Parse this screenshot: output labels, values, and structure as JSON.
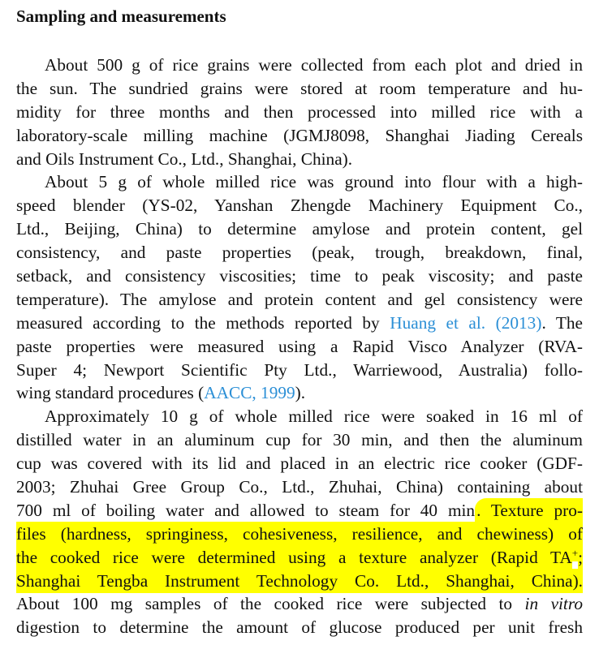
{
  "heading": "Sampling and measurements",
  "highlight_color": "#ffff00",
  "link_color": "#2b8fd6",
  "lines": [
    {
      "indent": true,
      "segs": [
        {
          "t": "About 500 g of rice grains were collected from each plot and dried in"
        }
      ]
    },
    {
      "segs": [
        {
          "t": "the sun. The sundried grains were stored at room temperature and hu-"
        }
      ]
    },
    {
      "segs": [
        {
          "t": "midity for three months and then processed into milled rice with a"
        }
      ]
    },
    {
      "segs": [
        {
          "t": "laboratory-scale milling machine (JGMJ8098, Shanghai Jiading Cereals"
        }
      ]
    },
    {
      "last": true,
      "segs": [
        {
          "t": "and Oils Instrument Co., Ltd., Shanghai, China)."
        }
      ]
    },
    {
      "indent": true,
      "segs": [
        {
          "t": "About 5 g of whole milled rice was ground into flour with a high-"
        }
      ]
    },
    {
      "segs": [
        {
          "t": "speed blender (YS-02, Yanshan Zhengde Machinery Equipment Co.,"
        }
      ]
    },
    {
      "segs": [
        {
          "t": "Ltd., Beijing, China) to determine amylose and protein content, gel"
        }
      ]
    },
    {
      "segs": [
        {
          "t": "consistency, and paste properties (peak, trough, breakdown, final,"
        }
      ]
    },
    {
      "segs": [
        {
          "t": "setback, and consistency viscosities; time to peak viscosity; and paste"
        }
      ]
    },
    {
      "segs": [
        {
          "t": "temperature). The amylose and protein content and gel consistency were"
        }
      ]
    },
    {
      "segs": [
        {
          "t": "measured according to the methods reported by "
        },
        {
          "t": "Huang et al. (2013)",
          "link": true
        },
        {
          "t": ". The"
        }
      ]
    },
    {
      "segs": [
        {
          "t": "paste properties were measured using a Rapid Visco Analyzer (RVA-"
        }
      ]
    },
    {
      "segs": [
        {
          "t": "Super 4; Newport Scientific Pty Ltd., Warriewood, Australia) follo-"
        }
      ]
    },
    {
      "last": true,
      "segs": [
        {
          "t": "wing standard procedures ("
        },
        {
          "t": "AACC, 1999",
          "link": true
        },
        {
          "t": ")."
        }
      ]
    },
    {
      "indent": true,
      "segs": [
        {
          "t": "Approximately 10 g of whole milled rice were soaked in 16 ml of"
        }
      ]
    },
    {
      "segs": [
        {
          "t": "distilled water in an aluminum cup for 30 min, and then the aluminum"
        }
      ]
    },
    {
      "segs": [
        {
          "t": "cup was covered with its lid and placed in an electric rice cooker (GDF-"
        }
      ]
    },
    {
      "segs": [
        {
          "t": "2003; Zhuhai Gree Group Co., Ltd., Zhuhai, China) containing about"
        }
      ]
    },
    {
      "segs": [
        {
          "t": "700 ml of boiling water and allowed to steam for 40 min"
        },
        {
          "t": ". Texture pro-",
          "hl": true,
          "first": true
        }
      ]
    },
    {
      "segs": [
        {
          "t": "files (hardness, springiness, cohesiveness, resilience, and chewiness) of",
          "hl": true
        }
      ]
    },
    {
      "segs": [
        {
          "t": "the cooked rice were determined using a texture analyzer (Rapid TA",
          "hl": true
        },
        {
          "t": "+",
          "hl": true,
          "sup": true
        },
        {
          "t": ";",
          "hl": true
        }
      ]
    },
    {
      "segs": [
        {
          "t": "Shanghai Tengba Instrument Technology Co. Ltd., Shanghai, China).",
          "hl": true
        }
      ]
    },
    {
      "segs": [
        {
          "t": "About 100 mg samples of the cooked rice were subjected to "
        },
        {
          "t": "in vitro",
          "it": true
        }
      ]
    },
    {
      "segs": [
        {
          "t": "digestion to determine the amount of glucose produced per unit fresh"
        }
      ]
    }
  ]
}
